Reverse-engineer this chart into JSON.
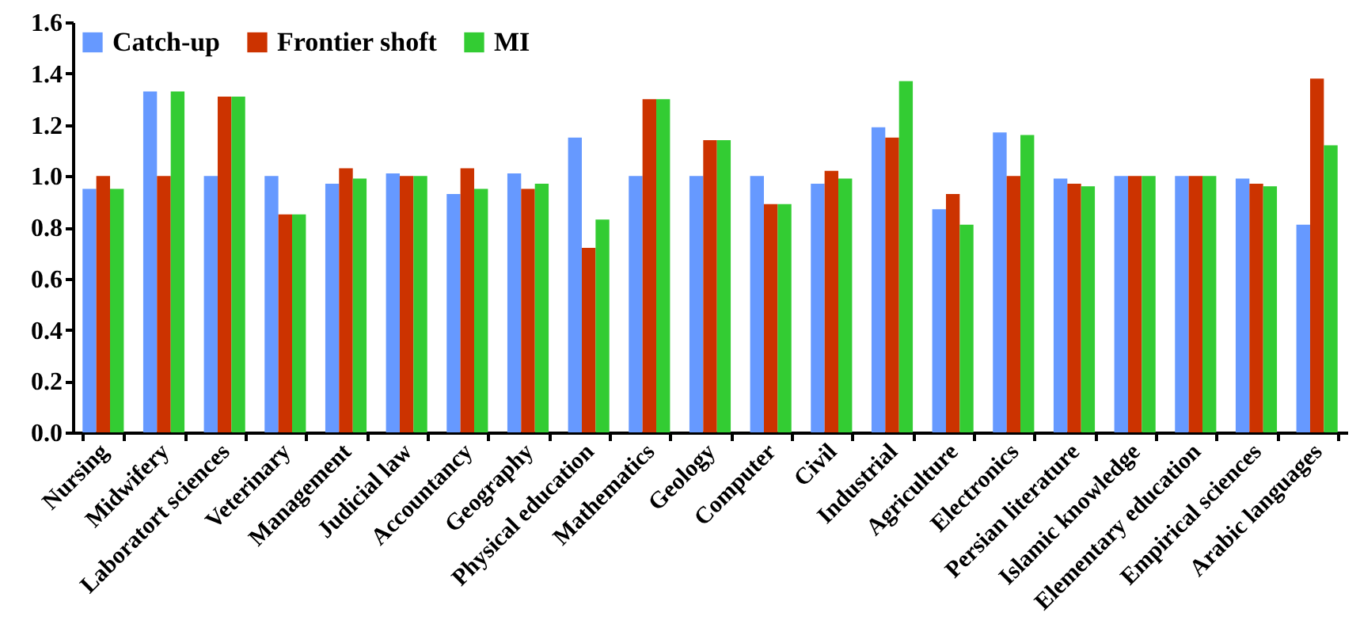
{
  "chart_data": {
    "type": "bar",
    "categories": [
      "Nursing",
      "Midwifery",
      "Laboratort sciences",
      "Veterinary",
      "Management",
      "Judicial law",
      "Accountancy",
      "Geography",
      "Physical education",
      "Mathematics",
      "Geology",
      "Computer",
      "Civil",
      "Industrial",
      "Agriculture",
      "Electronics",
      "Persian literature",
      "Islamic knowledge",
      "Elementary education",
      "Empirical sciences",
      "Arabic languages"
    ],
    "series": [
      {
        "name": "Catch-up",
        "color": "#6699ff",
        "values": [
          0.95,
          1.33,
          1.0,
          1.0,
          0.97,
          1.01,
          0.93,
          1.01,
          1.15,
          1.0,
          1.0,
          1.0,
          0.97,
          1.19,
          0.87,
          1.17,
          0.99,
          1.0,
          1.0,
          0.99,
          0.81
        ]
      },
      {
        "name": "Frontier shoft",
        "color": "#cc3300",
        "values": [
          1.0,
          1.0,
          1.31,
          0.85,
          1.03,
          1.0,
          1.03,
          0.95,
          0.72,
          1.3,
          1.14,
          0.89,
          1.02,
          1.15,
          0.93,
          1.0,
          0.97,
          1.0,
          1.0,
          0.97,
          1.38
        ]
      },
      {
        "name": "MI",
        "color": "#33cc33",
        "values": [
          0.95,
          1.33,
          1.31,
          0.85,
          0.99,
          1.0,
          0.95,
          0.97,
          0.83,
          1.3,
          1.14,
          0.89,
          0.99,
          1.37,
          0.81,
          1.16,
          0.96,
          1.0,
          1.0,
          0.96,
          1.12
        ]
      }
    ],
    "ylim": [
      0,
      1.6
    ],
    "yticks": [
      {
        "value": 0,
        "label": "0.0"
      },
      {
        "value": 0.2,
        "label": "0.2"
      },
      {
        "value": 0.4,
        "label": "0.4"
      },
      {
        "value": 0.6,
        "label": "0.6"
      },
      {
        "value": 0.8,
        "label": "0.8"
      },
      {
        "value": 1,
        "label": "1.0"
      },
      {
        "value": 1.2,
        "label": "1.2"
      },
      {
        "value": 1.4,
        "label": "1.4"
      },
      {
        "value": 1.6,
        "label": "1.6"
      }
    ],
    "legend": "top left",
    "grid": false
  }
}
